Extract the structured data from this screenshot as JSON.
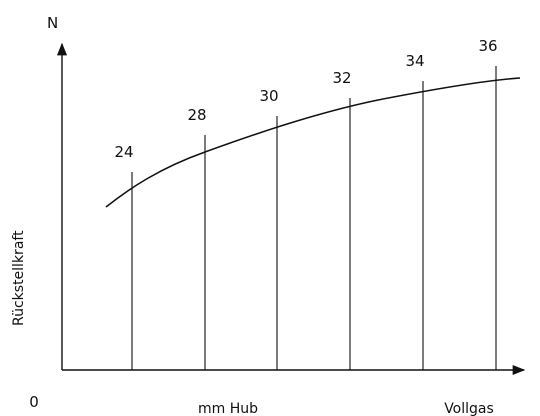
{
  "chart_data": {
    "type": "line",
    "title": "",
    "ylabel": "Rückstellkraft",
    "y_unit": "N",
    "xlabel": "mm Hub",
    "x_origin_label": "0",
    "x_end_label": "Vollgas",
    "markers": [
      "24",
      "28",
      "30",
      "32",
      "34",
      "36"
    ],
    "series": [
      {
        "name": "",
        "values": []
      }
    ]
  }
}
